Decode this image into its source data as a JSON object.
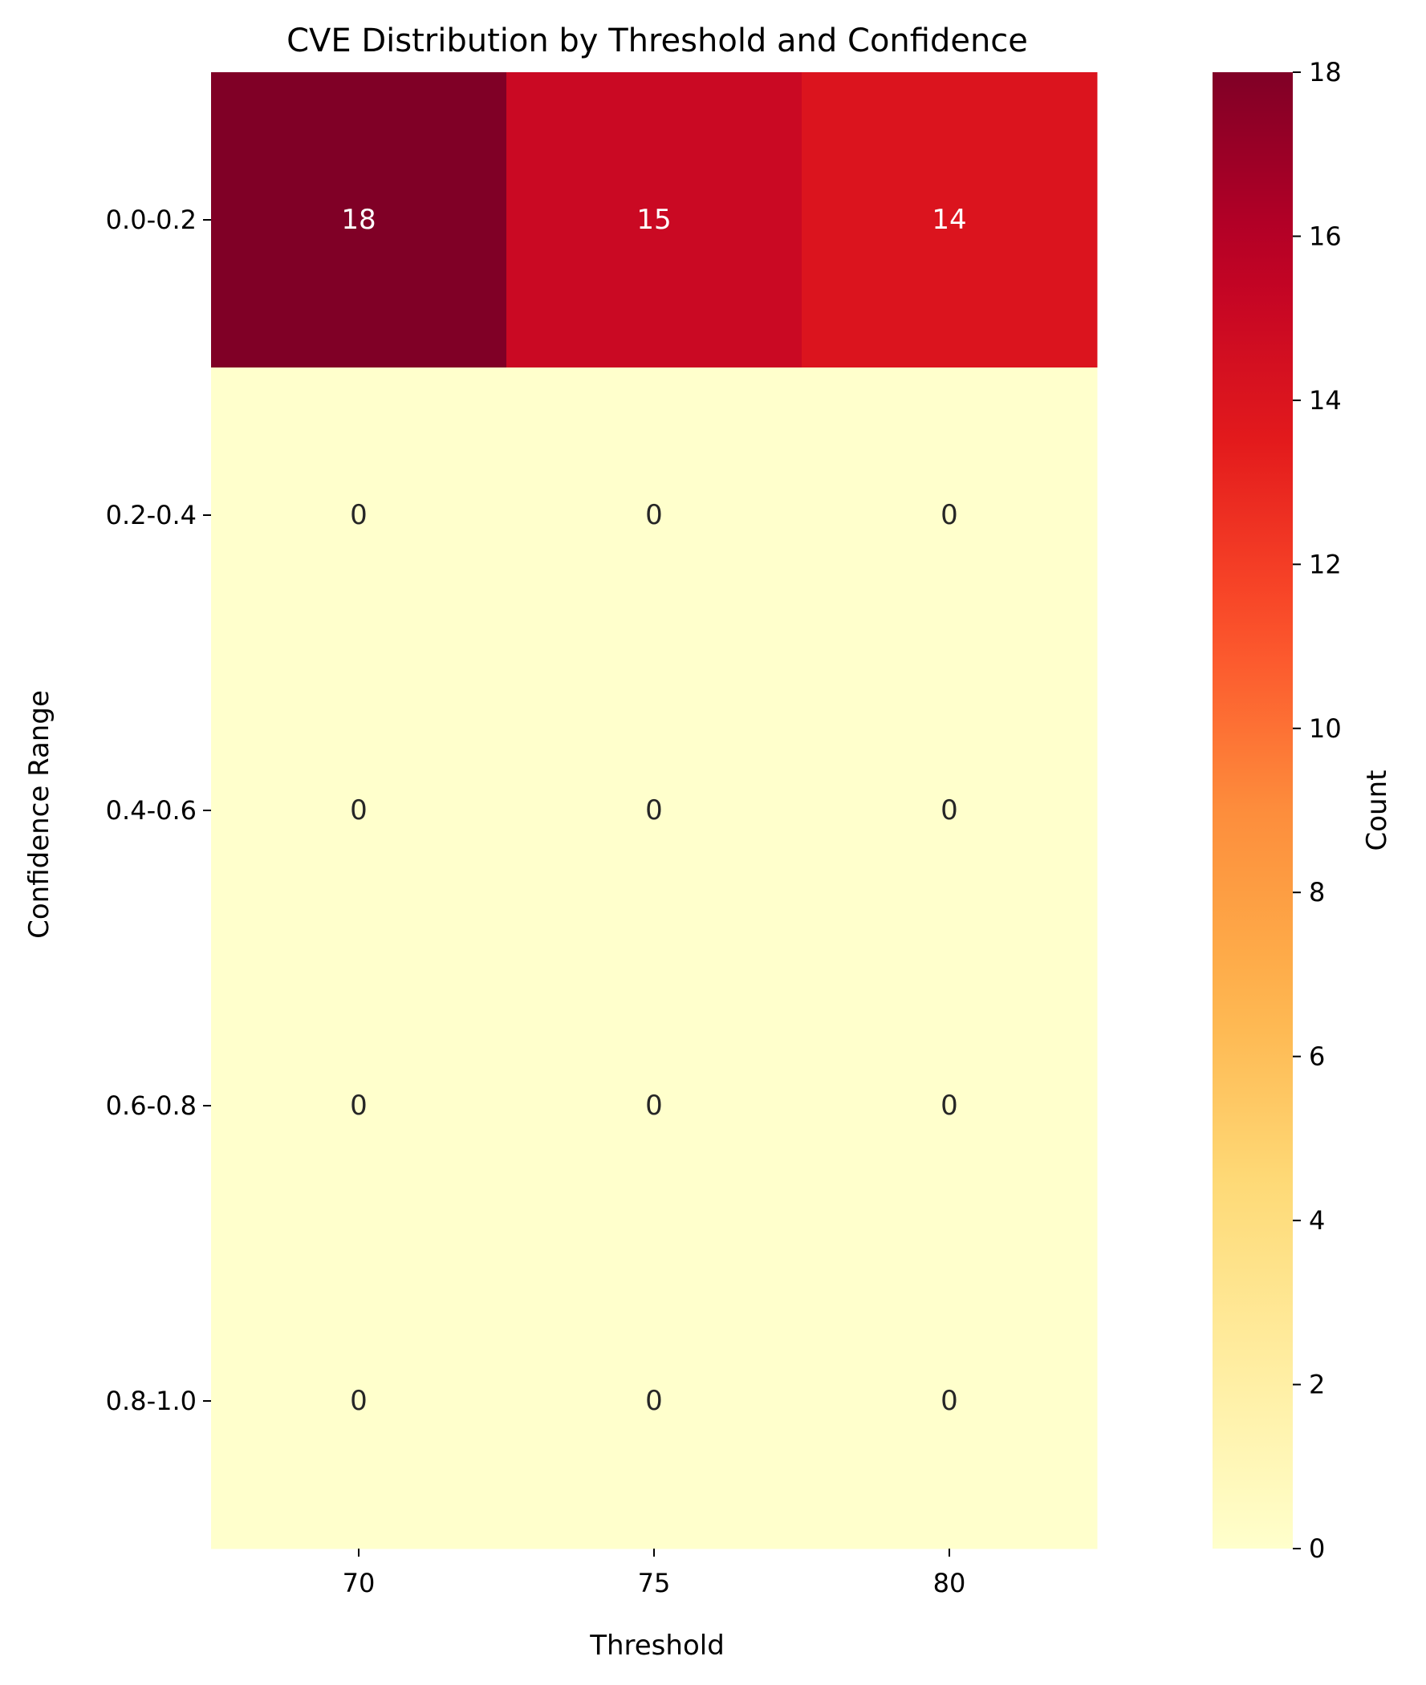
{
  "chart_data": {
    "type": "heatmap",
    "title": "CVE Distribution by Threshold and Confidence",
    "xlabel": "Threshold",
    "ylabel": "Confidence Range",
    "x_categories": [
      "70",
      "75",
      "80"
    ],
    "y_categories": [
      "0.0-0.2",
      "0.2-0.4",
      "0.4-0.6",
      "0.6-0.8",
      "0.8-1.0"
    ],
    "values": [
      [
        18,
        15,
        14
      ],
      [
        0,
        0,
        0
      ],
      [
        0,
        0,
        0
      ],
      [
        0,
        0,
        0
      ],
      [
        0,
        0,
        0
      ]
    ],
    "colorbar": {
      "label": "Count",
      "min": 0,
      "max": 18,
      "ticks": [
        0,
        2,
        4,
        6,
        8,
        10,
        12,
        14,
        16,
        18
      ],
      "colormap": "YlOrRd"
    },
    "annotations": true
  }
}
